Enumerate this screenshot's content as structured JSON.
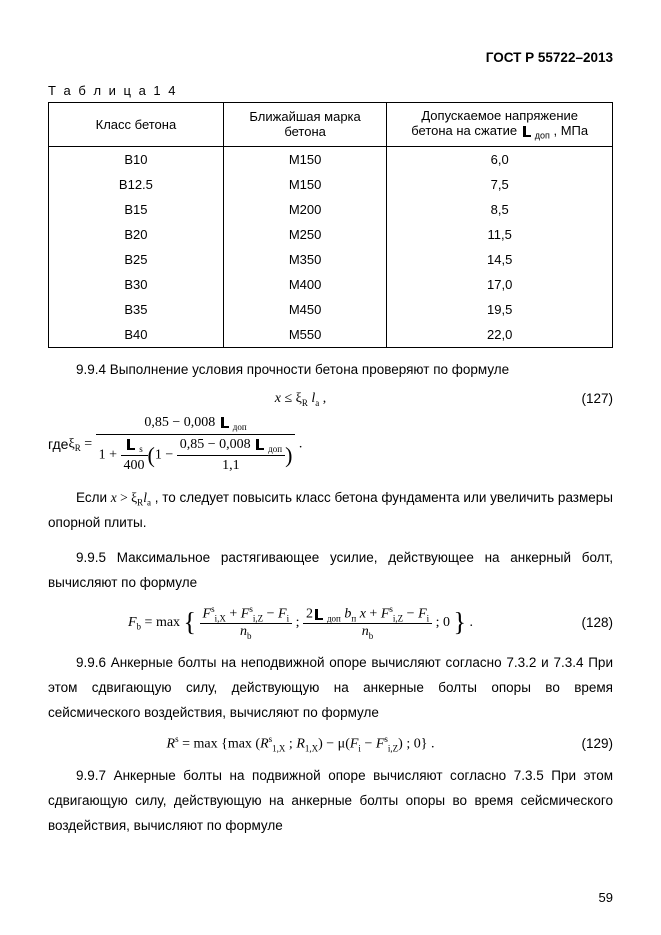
{
  "header": "ГОСТ Р 55722–2013",
  "table_label": "Т а б л и ц а   1 4",
  "table": {
    "columns": [
      "Класс бетона",
      "Ближайшая марка бетона",
      "Допускаемое напряжение бетона на сжатие  [σ]₋доп , МПа"
    ],
    "col2_line1": "Допускаемое напряжение",
    "col2_line2_a": "бетона на сжатие  ",
    "col2_line2_b": " , МПа",
    "rows": [
      [
        "B10",
        "М150",
        "6,0"
      ],
      [
        "B12.5",
        "М150",
        "7,5"
      ],
      [
        "B15",
        "М200",
        "8,5"
      ],
      [
        "B20",
        "М250",
        "11,5"
      ],
      [
        "B25",
        "М350",
        "14,5"
      ],
      [
        "B30",
        "М400",
        "17,0"
      ],
      [
        "B35",
        "М450",
        "19,5"
      ],
      [
        "B40",
        "М550",
        "22,0"
      ]
    ]
  },
  "p994": "9.9.4   Выполнение условия прочности бетона проверяют по формуле",
  "eq127_num": "(127)",
  "eq127_txt": "x ≤ ξR la ,",
  "p_where": "где  ",
  "p_if": "Если  x > ξR la ,  то следует повысить класс бетона фундамента или увеличить размеры опорной плиты.",
  "p995": "9.9.5   Максимальное растягивающее усилие, действующее на анкерный болт, вычисляют по формуле",
  "eq128_num": "(128)",
  "p996": "9.9.6   Анкерные болты на неподвижной опоре вычисляют согласно 7.3.2  и 7.3.4 При этом сдвигающую силу, действующую на анкерные болты опоры во время сейсмического воздействия, вычисляют по формуле",
  "eq129_num": "(129)",
  "p997": "9.9.7   Анкерные болты на подвижной опоре вычисляют согласно 7.3.5   При этом сдвигающую силу, действующую на анкерные болты опоры во время сейсмического воздействия,  вычисляют по формуле",
  "page_number": "59",
  "style": {
    "page_bg": "#ffffff",
    "text_color": "#000000",
    "body_font": "Arial",
    "serif_font": "Times New Roman",
    "body_fontsize": 13.5,
    "table_fontsize": 13,
    "table_border": "#000000",
    "line_height": 1.85
  },
  "formula_fragments": {
    "xi_num": "0,85 − 0,008 ",
    "den_left_num": "400",
    "den_inner_num": "0,85 − 0,008 ",
    "den_inner_den": "1,1",
    "fb_label": "F",
    "fb_eq": " = max",
    "rs_label": "Rˢ = max ",
    "xi_var": "ξR = "
  }
}
